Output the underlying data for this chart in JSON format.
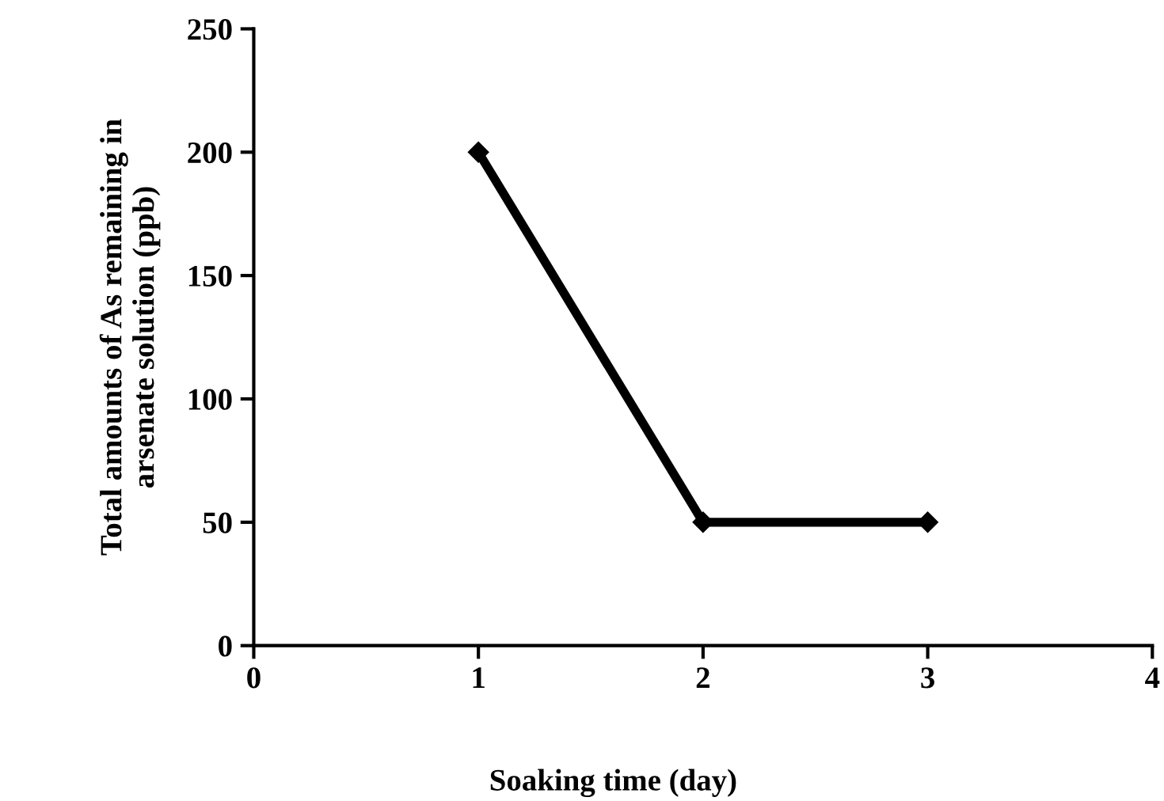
{
  "chart_data": {
    "type": "line",
    "xlabel": "Soaking time (day)",
    "ylabel": "Total amounts of As remaining in\narsenate solution (ppb)",
    "x": [
      1,
      2,
      3
    ],
    "series": [
      {
        "color": "#000000",
        "values": [
          200,
          50,
          50
        ]
      }
    ],
    "xlim": [
      0,
      4
    ],
    "xticks": [
      0,
      1,
      2,
      3,
      4
    ],
    "ylim": [
      0,
      250
    ],
    "yticks": [
      0,
      50,
      100,
      150,
      200,
      250
    ],
    "grid": false,
    "marker": "diamond",
    "line_style": "solid"
  }
}
